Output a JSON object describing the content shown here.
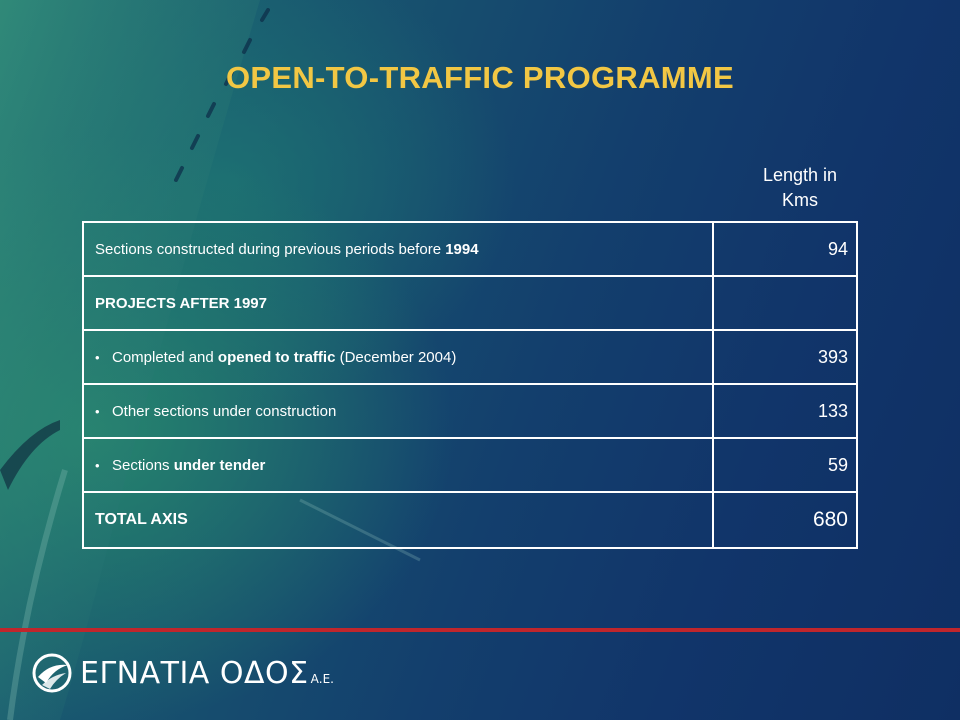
{
  "slide": {
    "title": "OPEN-TO-TRAFFIC PROGRAMME",
    "column_header_line1": "Length in",
    "column_header_line2": "Kms"
  },
  "table": {
    "rows": [
      {
        "pre": "Sections constructed during previous periods before ",
        "bold": "1994",
        "post": "",
        "value": "94"
      },
      {
        "label": "PROJECTS AFTER 1997",
        "value": ""
      },
      {
        "pre": "Completed and ",
        "bold": "opened to traffic",
        "post": " (December 2004)",
        "value": "393"
      },
      {
        "pre": "Other sections under construction",
        "bold": "",
        "post": "",
        "value": "133"
      },
      {
        "pre": "Sections ",
        "bold": "under tender",
        "post": "",
        "value": "59"
      },
      {
        "label": "TOTAL AXIS",
        "value": "680"
      }
    ],
    "bullet_symbol": "•"
  },
  "footer": {
    "logo_text": "ΕΓΝΑΤΙΑ ΟΔΟΣ",
    "logo_suffix": "Α.Ε.",
    "logo_icon": "egnatia-road-logo-icon"
  },
  "colors": {
    "title": "#f2c744",
    "accent_line": "#c0262c",
    "table_border": "#ffffff",
    "background": "#133f6d"
  }
}
